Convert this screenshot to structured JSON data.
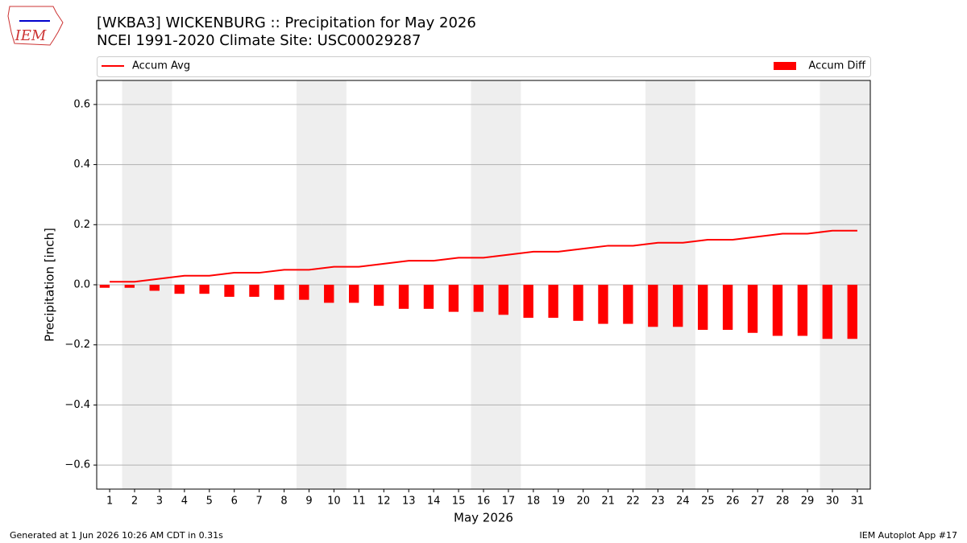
{
  "chart_data": {
    "type": "combo",
    "title": "[WKBA3] WICKENBURG :: Precipitation for May 2026",
    "subtitle": "NCEI 1991-2020 Climate Site: USC00029287",
    "logo_text": "IEM",
    "xlabel": "May 2026",
    "ylabel": "Precipitation [inch]",
    "footer_left": "Generated at 1 Jun 2026 10:26 AM CDT in 0.31s",
    "footer_right": "IEM Autoplot App #17",
    "x": [
      1,
      2,
      3,
      4,
      5,
      6,
      7,
      8,
      9,
      10,
      11,
      12,
      13,
      14,
      15,
      16,
      17,
      18,
      19,
      20,
      21,
      22,
      23,
      24,
      25,
      26,
      27,
      28,
      29,
      30,
      31
    ],
    "xlim": [
      0.48,
      31.52
    ],
    "xticks": [
      1,
      2,
      3,
      4,
      5,
      6,
      7,
      8,
      9,
      10,
      11,
      12,
      13,
      14,
      15,
      16,
      17,
      18,
      19,
      20,
      21,
      22,
      23,
      24,
      25,
      26,
      27,
      28,
      29,
      30,
      31
    ],
    "ylim": [
      -0.68,
      0.68
    ],
    "yticks": [
      {
        "value": -0.6,
        "label": "−0.6"
      },
      {
        "value": -0.4,
        "label": "−0.4"
      },
      {
        "value": -0.2,
        "label": "−0.2"
      },
      {
        "value": 0,
        "label": "0.0"
      },
      0.2,
      0.4,
      0.6
    ],
    "grid": true,
    "shaded_days": [
      2,
      3,
      9,
      10,
      16,
      17,
      23,
      24,
      30,
      31
    ],
    "series": [
      {
        "name": "Accum Avg",
        "type": "line",
        "color": "#ff0000",
        "values": [
          0.01,
          0.01,
          0.02,
          0.03,
          0.03,
          0.04,
          0.04,
          0.05,
          0.05,
          0.06,
          0.06,
          0.07,
          0.08,
          0.08,
          0.09,
          0.09,
          0.1,
          0.11,
          0.11,
          0.12,
          0.13,
          0.13,
          0.14,
          0.14,
          0.15,
          0.15,
          0.16,
          0.17,
          0.17,
          0.18,
          0.18
        ]
      },
      {
        "name": "Accum Diff",
        "type": "bar",
        "color": "#ff0000",
        "values": [
          -0.01,
          -0.01,
          -0.02,
          -0.03,
          -0.03,
          -0.04,
          -0.04,
          -0.05,
          -0.05,
          -0.06,
          -0.06,
          -0.07,
          -0.08,
          -0.08,
          -0.09,
          -0.09,
          -0.1,
          -0.11,
          -0.11,
          -0.12,
          -0.13,
          -0.13,
          -0.14,
          -0.14,
          -0.15,
          -0.15,
          -0.16,
          -0.17,
          -0.17,
          -0.18,
          -0.18
        ]
      }
    ]
  }
}
